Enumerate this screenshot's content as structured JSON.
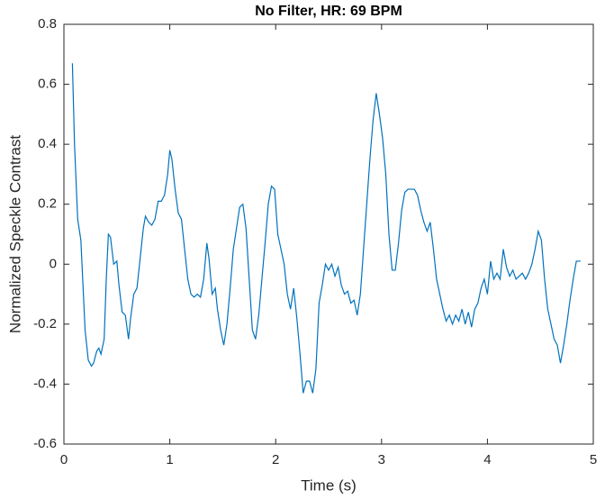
{
  "chart_data": {
    "type": "line",
    "title": "No Filter, HR: 69 BPM",
    "x_label": "Time (s)",
    "y_label": "Normalized Speckle Contrast",
    "color": "#0072bd",
    "x": [
      0.08,
      0.1,
      0.13,
      0.16,
      0.18,
      0.2,
      0.23,
      0.26,
      0.28,
      0.31,
      0.33,
      0.35,
      0.38,
      0.4,
      0.42,
      0.44,
      0.47,
      0.5,
      0.52,
      0.55,
      0.58,
      0.61,
      0.63,
      0.66,
      0.69,
      0.72,
      0.75,
      0.77,
      0.8,
      0.83,
      0.86,
      0.89,
      0.92,
      0.95,
      0.98,
      1.0,
      1.02,
      1.05,
      1.08,
      1.11,
      1.14,
      1.17,
      1.2,
      1.23,
      1.26,
      1.29,
      1.32,
      1.35,
      1.37,
      1.4,
      1.43,
      1.45,
      1.48,
      1.51,
      1.54,
      1.57,
      1.6,
      1.63,
      1.66,
      1.69,
      1.72,
      1.75,
      1.78,
      1.81,
      1.84,
      1.87,
      1.9,
      1.93,
      1.96,
      1.99,
      2.02,
      2.05,
      2.08,
      2.11,
      2.14,
      2.17,
      2.2,
      2.23,
      2.26,
      2.29,
      2.32,
      2.35,
      2.38,
      2.41,
      2.44,
      2.47,
      2.5,
      2.53,
      2.56,
      2.59,
      2.62,
      2.65,
      2.68,
      2.71,
      2.74,
      2.77,
      2.8,
      2.83,
      2.86,
      2.89,
      2.92,
      2.95,
      2.98,
      3.01,
      3.04,
      3.07,
      3.1,
      3.13,
      3.16,
      3.19,
      3.22,
      3.25,
      3.28,
      3.31,
      3.34,
      3.37,
      3.4,
      3.43,
      3.46,
      3.49,
      3.52,
      3.55,
      3.58,
      3.61,
      3.64,
      3.67,
      3.7,
      3.73,
      3.76,
      3.79,
      3.82,
      3.85,
      3.88,
      3.91,
      3.94,
      3.97,
      4.0,
      4.03,
      4.06,
      4.09,
      4.12,
      4.15,
      4.18,
      4.21,
      4.24,
      4.27,
      4.3,
      4.33,
      4.36,
      4.39,
      4.42,
      4.45,
      4.48,
      4.51,
      4.54,
      4.57,
      4.6,
      4.63,
      4.66,
      4.69,
      4.72,
      4.75,
      4.78,
      4.81,
      4.84,
      4.88
    ],
    "values": [
      0.67,
      0.4,
      0.15,
      0.08,
      -0.07,
      -0.22,
      -0.32,
      -0.34,
      -0.33,
      -0.29,
      -0.28,
      -0.3,
      -0.25,
      -0.05,
      0.1,
      0.09,
      0.0,
      0.01,
      -0.07,
      -0.16,
      -0.17,
      -0.25,
      -0.18,
      -0.1,
      -0.08,
      0.02,
      0.12,
      0.16,
      0.14,
      0.13,
      0.15,
      0.21,
      0.21,
      0.23,
      0.3,
      0.38,
      0.35,
      0.25,
      0.17,
      0.15,
      0.05,
      -0.05,
      -0.1,
      -0.11,
      -0.1,
      -0.11,
      -0.05,
      0.07,
      0.02,
      -0.1,
      -0.08,
      -0.15,
      -0.22,
      -0.27,
      -0.2,
      -0.08,
      0.05,
      0.12,
      0.19,
      0.2,
      0.12,
      -0.05,
      -0.22,
      -0.25,
      -0.17,
      -0.05,
      0.07,
      0.2,
      0.26,
      0.25,
      0.1,
      0.05,
      0.0,
      -0.1,
      -0.15,
      -0.08,
      -0.18,
      -0.3,
      -0.43,
      -0.39,
      -0.39,
      -0.43,
      -0.35,
      -0.13,
      -0.07,
      0.0,
      -0.02,
      0.0,
      -0.04,
      -0.01,
      -0.07,
      -0.1,
      -0.09,
      -0.13,
      -0.12,
      -0.17,
      -0.1,
      0.05,
      0.2,
      0.35,
      0.48,
      0.57,
      0.5,
      0.42,
      0.3,
      0.1,
      -0.02,
      -0.02,
      0.07,
      0.18,
      0.24,
      0.25,
      0.25,
      0.25,
      0.23,
      0.18,
      0.14,
      0.11,
      0.14,
      0.05,
      -0.05,
      -0.1,
      -0.15,
      -0.19,
      -0.17,
      -0.2,
      -0.17,
      -0.19,
      -0.15,
      -0.2,
      -0.16,
      -0.21,
      -0.15,
      -0.13,
      -0.08,
      -0.05,
      -0.1,
      0.01,
      -0.05,
      -0.03,
      -0.05,
      0.05,
      -0.01,
      -0.04,
      -0.02,
      -0.05,
      -0.04,
      -0.03,
      -0.05,
      -0.03,
      0.0,
      0.05,
      0.11,
      0.08,
      -0.05,
      -0.15,
      -0.2,
      -0.25,
      -0.27,
      -0.33,
      -0.27,
      -0.2,
      -0.12,
      -0.05,
      0.01,
      0.01
    ],
    "xlim": [
      0,
      5
    ],
    "xticks": [
      0,
      1,
      2,
      3,
      4,
      5
    ],
    "ylim": [
      -0.6,
      0.8
    ],
    "yticks": [
      -0.6,
      -0.4,
      -0.2,
      0,
      0.2,
      0.4,
      0.6,
      0.8
    ]
  }
}
